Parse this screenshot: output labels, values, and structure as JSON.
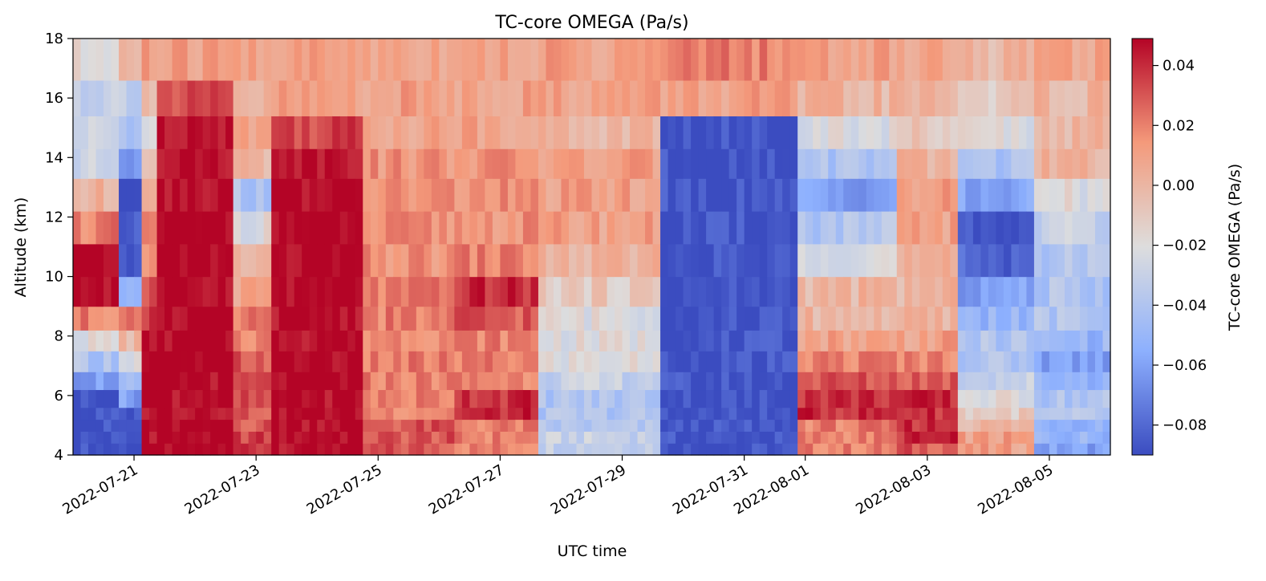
{
  "chart_data": {
    "type": "heatmap",
    "title": "TC-core OMEGA (Pa/s)",
    "xlabel": "UTC time",
    "ylabel": "Altitude (km)",
    "colorbar_label": "TC-core OMEGA (Pa/s)",
    "colormap": "coolwarm",
    "colormap_stops": [
      "#3b4cc0",
      "#8db0fe",
      "#dddddd",
      "#f49a7b",
      "#b40426"
    ],
    "vmin": -0.09,
    "vmax": 0.049,
    "xlim": [
      "2022-07-20 00:00",
      "2022-08-06 00:00"
    ],
    "ylim": [
      4,
      18
    ],
    "x_ticks": [
      "2022-07-21",
      "2022-07-23",
      "2022-07-25",
      "2022-07-27",
      "2022-07-29",
      "2022-07-31",
      "2022-08-01",
      "2022-08-03",
      "2022-08-05"
    ],
    "y_ticks": [
      "4",
      "6",
      "8",
      "10",
      "12",
      "14",
      "16",
      "18"
    ],
    "colorbar_ticks": [
      "0.04",
      "0.02",
      "0.00",
      "−0.02",
      "−0.04",
      "−0.06",
      "−0.08"
    ],
    "colorbar_tick_values": [
      0.04,
      0.02,
      0.0,
      -0.02,
      -0.04,
      -0.06,
      -0.08
    ],
    "time_step_hours": 3,
    "altitude_levels_km": [
      4,
      4.4,
      4.8,
      5.2,
      5.6,
      6.2,
      6.8,
      7.5,
      8.2,
      9.0,
      10.0,
      11.1,
      12.2,
      13.3,
      14.3,
      15.4,
      16.6,
      18
    ],
    "time_periods": [
      {
        "start": "2022-07-20 00:00",
        "end": "2022-07-20 18:00",
        "profile": [
          -0.088,
          -0.088,
          -0.088,
          -0.088,
          -0.088,
          -0.06,
          -0.04,
          -0.02,
          0.02,
          0.049,
          0.049,
          0.02,
          0.0,
          -0.03,
          -0.03,
          -0.03,
          -0.02
        ]
      },
      {
        "start": "2022-07-20 18:00",
        "end": "2022-07-21 03:00",
        "profile": [
          -0.088,
          -0.088,
          -0.088,
          -0.088,
          -0.06,
          -0.05,
          -0.02,
          0.0,
          0.02,
          -0.05,
          -0.088,
          -0.088,
          -0.088,
          -0.06,
          -0.04,
          -0.03,
          0.0
        ]
      },
      {
        "start": "2022-07-21 03:00",
        "end": "2022-07-21 09:00",
        "profile": [
          0.049,
          0.049,
          0.049,
          0.049,
          0.049,
          0.049,
          0.049,
          0.049,
          0.04,
          0.03,
          0.02,
          0.02,
          0.01,
          0.0,
          -0.02,
          0.0,
          0.01
        ]
      },
      {
        "start": "2022-07-21 09:00",
        "end": "2022-07-22 15:00",
        "profile": [
          0.049,
          0.049,
          0.049,
          0.049,
          0.049,
          0.049,
          0.049,
          0.049,
          0.049,
          0.049,
          0.049,
          0.049,
          0.049,
          0.049,
          0.049,
          0.03,
          0.01
        ]
      },
      {
        "start": "2022-07-22 15:00",
        "end": "2022-07-23 06:00",
        "profile": [
          0.04,
          0.035,
          0.03,
          0.03,
          0.03,
          0.03,
          0.03,
          0.02,
          0.02,
          0.01,
          0.0,
          -0.02,
          -0.04,
          0.0,
          0.01,
          0.0,
          0.01
        ]
      },
      {
        "start": "2022-07-23 06:00",
        "end": "2022-07-24 18:00",
        "profile": [
          0.049,
          0.049,
          0.049,
          0.049,
          0.049,
          0.049,
          0.049,
          0.049,
          0.049,
          0.049,
          0.049,
          0.049,
          0.049,
          0.049,
          0.035,
          0.01,
          0.01
        ]
      },
      {
        "start": "2022-07-24 18:00",
        "end": "2022-07-26 06:00",
        "profile": [
          0.03,
          0.03,
          0.03,
          0.02,
          0.02,
          0.02,
          0.02,
          0.02,
          0.02,
          0.02,
          0.015,
          0.015,
          0.015,
          0.015,
          0.01,
          0.01,
          0.01
        ]
      },
      {
        "start": "2022-07-26 06:00",
        "end": "2022-07-27 15:00",
        "profile": [
          0.02,
          0.02,
          0.02,
          0.04,
          0.04,
          0.02,
          0.02,
          0.02,
          0.03,
          0.04,
          0.02,
          0.015,
          0.015,
          0.015,
          0.01,
          0.01,
          0.01
        ]
      },
      {
        "start": "2022-07-27 15:00",
        "end": "2022-07-29 15:00",
        "profile": [
          -0.03,
          -0.03,
          -0.04,
          -0.04,
          -0.04,
          -0.03,
          -0.02,
          -0.02,
          -0.02,
          -0.01,
          0.0,
          0.01,
          0.01,
          0.01,
          0.0,
          0.01,
          0.01
        ]
      },
      {
        "start": "2022-07-29 15:00",
        "end": "2022-07-31 21:00",
        "profile": [
          -0.088,
          -0.088,
          -0.088,
          -0.088,
          -0.088,
          -0.088,
          -0.088,
          -0.088,
          -0.088,
          -0.088,
          -0.088,
          -0.088,
          -0.088,
          -0.088,
          -0.088,
          0.01,
          0.02
        ]
      },
      {
        "start": "2022-07-31 21:00",
        "end": "2022-08-02 12:00",
        "profile": [
          0.02,
          0.02,
          0.02,
          0.04,
          0.04,
          0.03,
          0.02,
          0.01,
          0.0,
          0.0,
          -0.02,
          -0.04,
          -0.06,
          -0.04,
          -0.02,
          0.0,
          0.01
        ]
      },
      {
        "start": "2022-08-02 12:00",
        "end": "2022-08-03 12:00",
        "profile": [
          0.03,
          0.04,
          0.04,
          0.04,
          0.04,
          0.03,
          0.02,
          0.01,
          0.0,
          0.0,
          0.0,
          0.01,
          0.01,
          0.0,
          -0.01,
          0.0,
          0.01
        ]
      },
      {
        "start": "2022-08-03 12:00",
        "end": "2022-08-04 18:00",
        "profile": [
          0.01,
          0.01,
          0.0,
          -0.01,
          -0.02,
          -0.03,
          -0.04,
          -0.04,
          -0.05,
          -0.06,
          -0.08,
          -0.088,
          -0.06,
          -0.04,
          -0.02,
          -0.01,
          0.0
        ]
      },
      {
        "start": "2022-08-04 18:00",
        "end": "2022-08-06 00:00",
        "profile": [
          -0.06,
          -0.05,
          -0.05,
          -0.04,
          -0.04,
          -0.05,
          -0.06,
          -0.05,
          -0.04,
          -0.04,
          -0.04,
          -0.03,
          -0.02,
          0.0,
          0.0,
          0.0,
          0.01
        ]
      }
    ]
  }
}
